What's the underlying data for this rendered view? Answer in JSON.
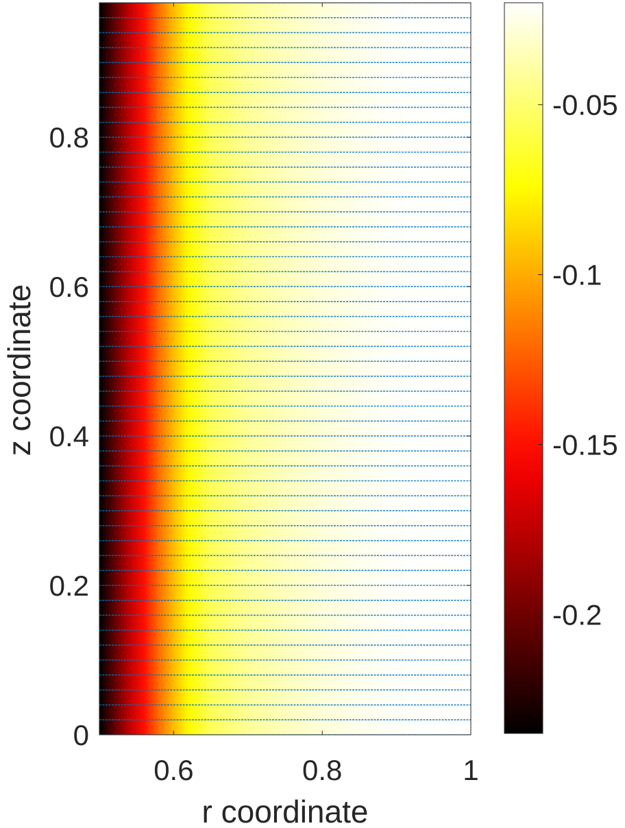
{
  "chart_data": {
    "type": "heatmap",
    "title": "",
    "xlabel": "r coordinate",
    "ylabel": "z coordinate",
    "xlim": [
      0.5,
      1.0
    ],
    "ylim": [
      0,
      0.98
    ],
    "x_ticks": [
      {
        "value": 0.6,
        "label": "0.6"
      },
      {
        "value": 0.8,
        "label": "0.8"
      },
      {
        "value": 1.0,
        "label": "1"
      }
    ],
    "y_ticks": [
      {
        "value": 0,
        "label": "0"
      },
      {
        "value": 0.2,
        "label": "0.2"
      },
      {
        "value": 0.4,
        "label": "0.4"
      },
      {
        "value": 0.6,
        "label": "0.6"
      },
      {
        "value": 0.8,
        "label": "0.8"
      }
    ],
    "colormap": "hot",
    "colorbar": {
      "range": [
        -0.235,
        -0.02
      ],
      "ticks": [
        {
          "value": -0.05,
          "label": "-0.05"
        },
        {
          "value": -0.1,
          "label": "-0.1"
        },
        {
          "value": -0.15,
          "label": "-0.15"
        },
        {
          "value": -0.2,
          "label": "-0.2"
        }
      ]
    },
    "field_profile": {
      "description_axis": "r",
      "r": [
        0.5,
        0.52,
        0.54,
        0.56,
        0.58,
        0.6,
        0.62,
        0.65,
        0.7,
        0.75,
        0.8,
        0.85,
        0.9,
        1.0
      ],
      "value": [
        -0.235,
        -0.205,
        -0.175,
        -0.15,
        -0.12,
        -0.095,
        -0.075,
        -0.055,
        -0.042,
        -0.034,
        -0.028,
        -0.024,
        -0.021,
        -0.02
      ]
    },
    "vector_field": {
      "color": "#0072bd",
      "direction": "radial (+r)",
      "z_spacing": 0.02,
      "z_start": 0,
      "z_end": 0.98,
      "r_start": 0.5,
      "r_end": 1.0,
      "r_spacing": 0.005
    },
    "grid": false,
    "box": true
  }
}
